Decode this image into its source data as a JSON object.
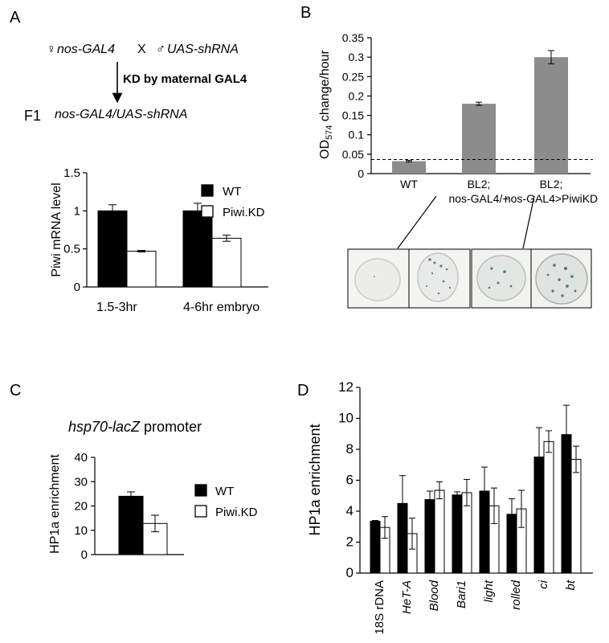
{
  "panels": {
    "A": {
      "letter": "A",
      "cross": {
        "female_symbol": "♀",
        "female": "nos-GAL4",
        "times": "X",
        "male_symbol": "♂",
        "male": "UAS-shRNA",
        "arrow_label": "KD by maternal GAL4",
        "f1_label": "F1",
        "f1_genotype": "nos-GAL4/UAS-shRNA"
      },
      "chart_data": {
        "type": "bar",
        "categories": [
          "1.5-3hr",
          "4-6hr embryo"
        ],
        "series": [
          {
            "name": "WT",
            "values": [
              1.0,
              1.0
            ],
            "errors": [
              0.08,
              0.1
            ],
            "color": "#000000"
          },
          {
            "name": "Piwi.KD",
            "values": [
              0.47,
              0.64
            ],
            "errors": [
              0.01,
              0.04
            ],
            "color": "#ffffff"
          }
        ],
        "ylabel": "Piwi mRNA level",
        "ylim": [
          0,
          1.5
        ],
        "yticks": [
          "0",
          "0.5",
          "1",
          "1.5"
        ],
        "legend": "right"
      }
    },
    "B": {
      "letter": "B",
      "chart_data": {
        "type": "bar",
        "categories": [
          "WT",
          "BL2;\nnos-GAL4/+",
          "BL2;\nnos-GAL4>PiwiKD"
        ],
        "category_lines": [
          [
            "WT"
          ],
          [
            "BL2;",
            "nos-GAL4/+"
          ],
          [
            "BL2;",
            "nos-GAL4>PiwiKD"
          ]
        ],
        "values": [
          0.032,
          0.18,
          0.3
        ],
        "errors": [
          0.002,
          0.004,
          0.017
        ],
        "color": "#8c8c8c",
        "ylabel_main": "OD",
        "ylabel_sub": "574",
        "ylabel_rest": " change/hour",
        "ylim": [
          0,
          0.35
        ],
        "yticks": [
          "0",
          "0.05",
          "0.1",
          "0.15",
          "0.2",
          "0.25",
          "0.3",
          "0.35"
        ],
        "threshold": 0.032
      }
    },
    "C": {
      "letter": "C",
      "chart_data": {
        "type": "bar",
        "title": "hsp70-lacZ promoter",
        "title_italic": "hsp70-lacZ",
        "title_rest": " promoter",
        "categories": [
          ""
        ],
        "series": [
          {
            "name": "WT",
            "values": [
              24
            ],
            "errors": [
              1.8
            ],
            "color": "#000000"
          },
          {
            "name": "Piwi.KD",
            "values": [
              12.8
            ],
            "errors": [
              3.4
            ],
            "color": "#ffffff"
          }
        ],
        "ylabel": "HP1a enrichment",
        "ylim": [
          0,
          40
        ],
        "yticks": [
          "0",
          "10",
          "20",
          "30",
          "40"
        ],
        "legend": "right"
      }
    },
    "D": {
      "letter": "D",
      "chart_data": {
        "type": "bar",
        "categories": [
          "18S rDNA",
          "HeT-A",
          "Blood",
          "Bari1",
          "light",
          "rolled",
          "ci",
          "bt"
        ],
        "italic_categories": [
          false,
          true,
          true,
          true,
          true,
          true,
          true,
          true
        ],
        "series": [
          {
            "name": "WT",
            "values": [
              3.35,
              4.5,
              4.75,
              5.05,
              5.3,
              3.8,
              7.5,
              8.95
            ],
            "errors": [
              0.05,
              1.8,
              0.55,
              0.2,
              1.55,
              1.0,
              1.9,
              1.9
            ],
            "color": "#000000"
          },
          {
            "name": "Piwi.KD",
            "values": [
              2.95,
              2.55,
              5.35,
              5.2,
              4.35,
              4.15,
              8.5,
              7.35
            ],
            "errors": [
              0.7,
              1.0,
              0.55,
              0.85,
              1.15,
              1.2,
              0.7,
              0.85
            ],
            "color": "#ffffff"
          }
        ],
        "ylabel": "HP1a enrichment",
        "ylim": [
          0,
          12
        ],
        "yticks": [
          "0",
          "2",
          "4",
          "6",
          "8",
          "10",
          "12"
        ]
      }
    }
  }
}
